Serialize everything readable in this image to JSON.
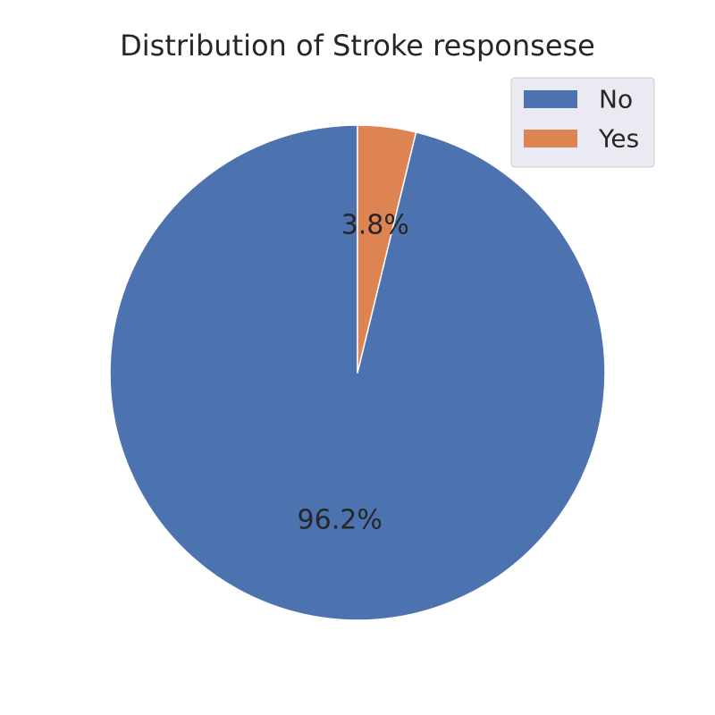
{
  "chart_data": {
    "type": "pie",
    "title": "Distribution of Stroke responsese",
    "categories": [
      "No",
      "Yes"
    ],
    "values": [
      96.2,
      3.8
    ],
    "value_labels": [
      "96.2%",
      "3.8%"
    ],
    "colors": [
      "#4c72b0",
      "#dd8452"
    ],
    "start_angle_deg": 90,
    "direction": "counterclockwise",
    "legend": {
      "placement": "top-right",
      "entries": [
        "No",
        "Yes"
      ]
    }
  }
}
